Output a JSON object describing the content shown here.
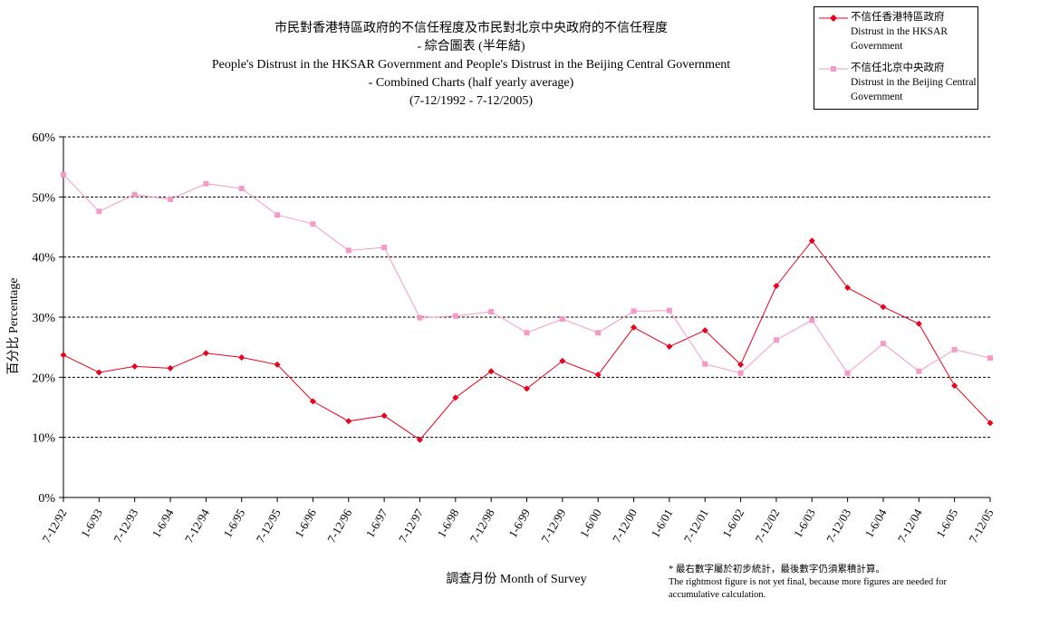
{
  "chart_data": {
    "type": "line",
    "title": "市民對香港特區政府的不信任程度及市民對北京中央政府的不信任程度",
    "title_line2": "- 綜合圖表 (半年結)",
    "title_en_line1": "People's Distrust in the HKSAR Government and People's Distrust in the Beijing Central Government",
    "title_en_line2": "- Combined Charts (half yearly average)",
    "subtitle": "(7-12/1992 - 7-12/2005)",
    "ylabel": "百分比 Percentage",
    "xlabel": "調查月份 Month of Survey",
    "ylim": [
      0,
      60
    ],
    "yticks": [
      "0%",
      "10%",
      "20%",
      "30%",
      "40%",
      "50%",
      "60%"
    ],
    "grid": true,
    "legend_position": "top-right",
    "categories": [
      "7-12/92",
      "1-6/93",
      "7-12/93",
      "1-6/94",
      "7-12/94",
      "1-6/95",
      "7-12/95",
      "1-6/96",
      "7-12/96",
      "1-6/97",
      "7-12/97",
      "1-6/98",
      "7-12/98",
      "1-6/99",
      "7-12/99",
      "1-6/00",
      "7-12/00",
      "1-6/01",
      "7-12/01",
      "1-6/02",
      "7-12/02",
      "1-6/03",
      "7-12/03",
      "1-6/04",
      "7-12/04",
      "1-6/05",
      "7-12/05"
    ],
    "series": [
      {
        "name": "不信任香港特區政府",
        "name_en_line1": "Distrust in the HKSAR",
        "name_en_line2": "Government",
        "color": "#e8001c",
        "marker": "diamond",
        "values": [
          23.7,
          20.8,
          21.8,
          21.5,
          24.0,
          23.3,
          22.1,
          16.0,
          12.7,
          13.6,
          9.6,
          16.6,
          21.0,
          18.1,
          22.7,
          20.4,
          28.3,
          25.1,
          27.8,
          22.1,
          35.2,
          42.7,
          34.9,
          31.7,
          28.9,
          18.6,
          12.4
        ]
      },
      {
        "name": "不信任北京中央政府",
        "name_en_line1": "Distrust in the Beijing Central",
        "name_en_line2": "Government",
        "color": "#f59ac6",
        "marker": "square",
        "values": [
          53.7,
          47.6,
          50.4,
          49.6,
          52.2,
          51.4,
          47.0,
          45.5,
          41.1,
          41.6,
          29.9,
          30.2,
          30.9,
          27.4,
          29.7,
          27.4,
          31.0,
          31.1,
          22.2,
          20.7,
          26.2,
          29.5,
          20.7,
          25.6,
          21.0,
          24.6,
          23.2
        ]
      }
    ],
    "footnote_line1": "* 最右數字屬於初步統計，最後數字仍須累積計算。",
    "footnote_line2": "The rightmost figure is not yet final, because more figures are needed for",
    "footnote_line3": "accumulative calculation."
  }
}
